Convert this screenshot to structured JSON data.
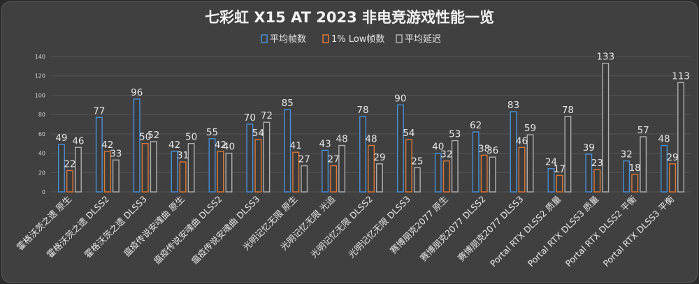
{
  "chart_data": {
    "type": "bar",
    "title": "七彩虹 X15 AT 2023 非电竞游戏性能一览",
    "xlabel": "",
    "ylabel": "",
    "ylim": [
      0,
      140
    ],
    "yticks": [
      0,
      20,
      40,
      60,
      80,
      100,
      120,
      140
    ],
    "grid": true,
    "legend_position": "top-center",
    "categories": [
      "霍格沃茨之遗 原生",
      "霍格沃茨之遗 DLSS2",
      "霍格沃茨之遗 DLSS3",
      "瘟疫传说安魂曲 原生",
      "瘟疫传说安魂曲 DLSS2",
      "瘟疫传说安魂曲 DLSS3",
      "光明记忆无限 原生",
      "光明记忆无限 光追",
      "光明记忆无限 DLSS2",
      "光明记忆无限 DLSS3",
      "赛博朋克2077 原生",
      "赛博朋克2077 DLSS2",
      "赛博朋克2077 DLSS3",
      "Portal RTX DLSS2 质量",
      "Portal RTX DLSS3 质量",
      "Portal RTX DLSS2 平衡",
      "Portal RTX DLSS3 平衡"
    ],
    "series": [
      {
        "name": "平均帧数",
        "color": "#4a8fd6",
        "values": [
          49,
          77,
          96,
          42,
          55,
          70,
          85,
          43,
          78,
          90,
          40,
          62,
          83,
          24,
          39,
          32,
          48
        ]
      },
      {
        "name": "1% Low帧数",
        "color": "#d9793a",
        "values": [
          22,
          42,
          50,
          31,
          42,
          54,
          41,
          27,
          48,
          54,
          32,
          38,
          46,
          17,
          23,
          18,
          29
        ]
      },
      {
        "name": "平均延迟",
        "color": "#b0b0b0",
        "values": [
          46,
          33,
          52,
          50,
          40,
          72,
          27,
          48,
          29,
          25,
          53,
          36,
          59,
          78,
          133,
          57,
          113
        ]
      }
    ]
  }
}
